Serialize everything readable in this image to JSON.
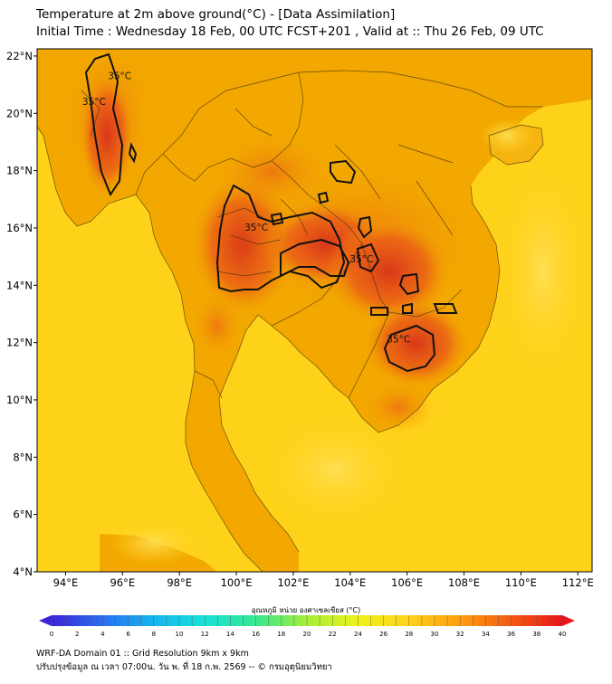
{
  "header": {
    "title_line1": "Temperature at 2m above ground(°C) - [Data Assimilation]",
    "title_line2": "Initial Time : Wednesday 18 Feb, 00 UTC FCST+201 , Valid at :: Thu 26 Feb, 09 UTC"
  },
  "map": {
    "lon_range": [
      93,
      112.5
    ],
    "lat_range": [
      4,
      22.25
    ],
    "x_ticks": [
      {
        "v": 94,
        "label": "94°E"
      },
      {
        "v": 96,
        "label": "96°E"
      },
      {
        "v": 98,
        "label": "98°E"
      },
      {
        "v": 100,
        "label": "100°E"
      },
      {
        "v": 102,
        "label": "102°E"
      },
      {
        "v": 104,
        "label": "104°E"
      },
      {
        "v": 106,
        "label": "106°E"
      },
      {
        "v": 108,
        "label": "108°E"
      },
      {
        "v": 110,
        "label": "110°E"
      },
      {
        "v": 112,
        "label": "112°E"
      }
    ],
    "y_ticks": [
      {
        "v": 22,
        "label": "22°N"
      },
      {
        "v": 20,
        "label": "20°N"
      },
      {
        "v": 18,
        "label": "18°N"
      },
      {
        "v": 16,
        "label": "16°N"
      },
      {
        "v": 14,
        "label": "14°N"
      },
      {
        "v": 12,
        "label": "12°N"
      },
      {
        "v": 10,
        "label": "10°N"
      },
      {
        "v": 8,
        "label": "8°N"
      },
      {
        "v": 6,
        "label": "6°N"
      },
      {
        "v": 4,
        "label": "4°N"
      }
    ],
    "contour_labels": [
      {
        "text": "35°C",
        "lon": 95.0,
        "lat": 20.3
      },
      {
        "text": "35°C",
        "lon": 95.9,
        "lat": 21.2
      },
      {
        "text": "35°C",
        "lon": 100.7,
        "lat": 15.9
      },
      {
        "text": "35°C",
        "lon": 104.4,
        "lat": 14.8
      },
      {
        "text": "35°C",
        "lon": 105.7,
        "lat": 12.0
      }
    ],
    "colors": {
      "land_base": "#f2a800",
      "sea": "#ffd21a",
      "hot": "#e8481a",
      "contour": "#111111",
      "border": "#3a2a10"
    }
  },
  "colorbar": {
    "title": "อุณหภูมิ หน่วย องศาเซลเซียส (°C)",
    "min": 0,
    "max": 40,
    "tick_labels": [
      "0",
      "2",
      "4",
      "6",
      "8",
      "10",
      "12",
      "14",
      "16",
      "18",
      "20",
      "22",
      "24",
      "26",
      "28",
      "30",
      "32",
      "34",
      "36",
      "38",
      "40"
    ],
    "colors": [
      "#3a24d8",
      "#2a6ef0",
      "#16b6f0",
      "#18e0d6",
      "#36e890",
      "#a6ee3a",
      "#eef21a",
      "#ffd21a",
      "#ff9e0e",
      "#f45a12",
      "#e8141a"
    ]
  },
  "footer": {
    "line1": "WRF-DA Domain 01 :: Grid Resolution 9km x 9km",
    "line2": "ปรับปรุงข้อมูล ณ เวลา 07:00น. วัน พ. ที่ 18 ก.พ. 2569 -- © กรมอุตุนิยมวิทยา"
  }
}
